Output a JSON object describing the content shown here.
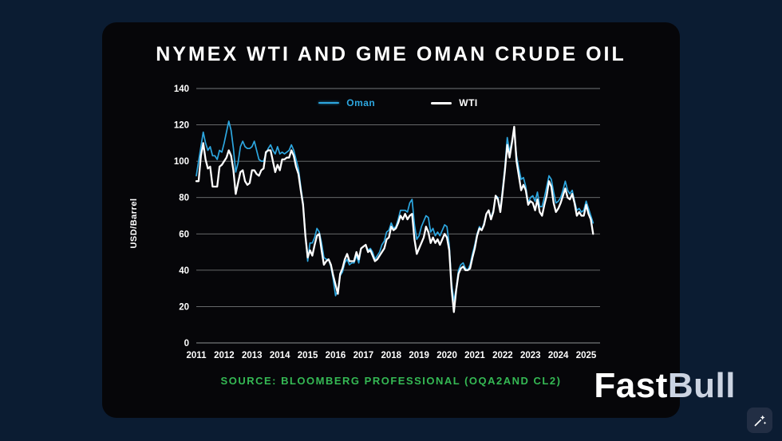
{
  "chart_data": {
    "type": "line",
    "title": "NYMEX WTI AND GME OMAN CRUDE OIL",
    "xlabel": "",
    "ylabel": "USD/Barrel",
    "ylim": [
      0,
      140
    ],
    "yticks": [
      0,
      20,
      40,
      60,
      80,
      100,
      120,
      140
    ],
    "xticks": [
      2011,
      2012,
      2013,
      2014,
      2015,
      2016,
      2017,
      2018,
      2019,
      2020,
      2021,
      2022,
      2023,
      2024,
      2025
    ],
    "x_domain": [
      2011,
      2025.5
    ],
    "x_start": 2011,
    "x_step_months": 1,
    "grid": "horizontal",
    "legend_position": "top",
    "series": [
      {
        "name": "Oman",
        "color": "#2da7e0",
        "width": 1.7,
        "values": [
          92,
          100,
          108,
          116,
          110,
          106,
          108,
          103,
          103,
          101,
          106,
          105,
          110,
          116,
          122,
          117,
          107,
          94,
          99,
          108,
          111,
          108,
          107,
          107,
          108,
          111,
          106,
          101,
          100,
          100,
          104,
          107,
          109,
          106,
          104,
          108,
          104,
          105,
          104,
          105,
          106,
          109,
          106,
          101,
          96,
          86,
          77,
          60,
          45,
          55,
          55,
          58,
          63,
          61,
          55,
          47,
          46,
          46,
          42,
          35,
          26,
          29,
          37,
          39,
          44,
          46,
          43,
          44,
          44,
          48,
          44,
          52,
          53,
          54,
          51,
          52,
          50,
          46,
          48,
          50,
          54,
          56,
          61,
          62,
          66,
          63,
          64,
          68,
          73,
          73,
          73,
          72,
          77,
          79,
          65,
          57,
          59,
          64,
          67,
          70,
          69,
          61,
          63,
          59,
          61,
          59,
          62,
          65,
          64,
          54,
          33,
          23,
          30,
          40,
          43,
          44,
          41,
          40,
          43,
          49,
          54,
          60,
          64,
          62,
          66,
          71,
          73,
          69,
          73,
          81,
          80,
          73,
          85,
          97,
          113,
          105,
          111,
          117,
          103,
          96,
          90,
          91,
          86,
          77,
          80,
          81,
          78,
          83,
          75,
          75,
          80,
          86,
          92,
          90,
          83,
          77,
          78,
          80,
          84,
          89,
          84,
          82,
          84,
          78,
          73,
          74,
          72,
          73,
          78,
          74,
          70,
          66
        ]
      },
      {
        "name": "WTI",
        "color": "#ffffff",
        "width": 2.3,
        "values": [
          89,
          89,
          103,
          110,
          101,
          96,
          97,
          86,
          86,
          86,
          97,
          98,
          100,
          102,
          106,
          103,
          95,
          82,
          88,
          94,
          95,
          89,
          87,
          88,
          95,
          95,
          93,
          92,
          95,
          96,
          105,
          106,
          106,
          100,
          94,
          98,
          95,
          101,
          101,
          102,
          102,
          106,
          103,
          97,
          93,
          84,
          76,
          59,
          47,
          51,
          48,
          54,
          59,
          60,
          51,
          43,
          45,
          46,
          43,
          37,
          32,
          27,
          38,
          41,
          46,
          49,
          45,
          45,
          45,
          50,
          46,
          52,
          53,
          54,
          50,
          51,
          48,
          45,
          46,
          48,
          50,
          52,
          57,
          58,
          64,
          62,
          63,
          66,
          70,
          68,
          71,
          68,
          70,
          71,
          57,
          49,
          52,
          55,
          58,
          64,
          61,
          55,
          58,
          55,
          57,
          54,
          57,
          60,
          58,
          51,
          30,
          17,
          29,
          38,
          41,
          42,
          40,
          40,
          41,
          47,
          52,
          59,
          63,
          62,
          65,
          71,
          73,
          68,
          72,
          81,
          79,
          72,
          83,
          95,
          109,
          102,
          110,
          119,
          100,
          92,
          84,
          87,
          84,
          76,
          78,
          77,
          73,
          79,
          72,
          70,
          76,
          81,
          89,
          86,
          77,
          72,
          74,
          77,
          81,
          85,
          80,
          79,
          82,
          77,
          70,
          72,
          70,
          70,
          76,
          71,
          68,
          60
        ]
      }
    ]
  },
  "footer": {
    "source": "SOURCE: BLOOMBERG PROFESSIONAL (OQA2AND CL2)"
  },
  "logo": {
    "fast": "Fast",
    "bull": "Bull"
  },
  "colors": {
    "page_background": "#0b1c32",
    "card_background": "#060609",
    "oman_line": "#2da7e0",
    "wti_line": "#ffffff",
    "source_text": "#35b954"
  }
}
